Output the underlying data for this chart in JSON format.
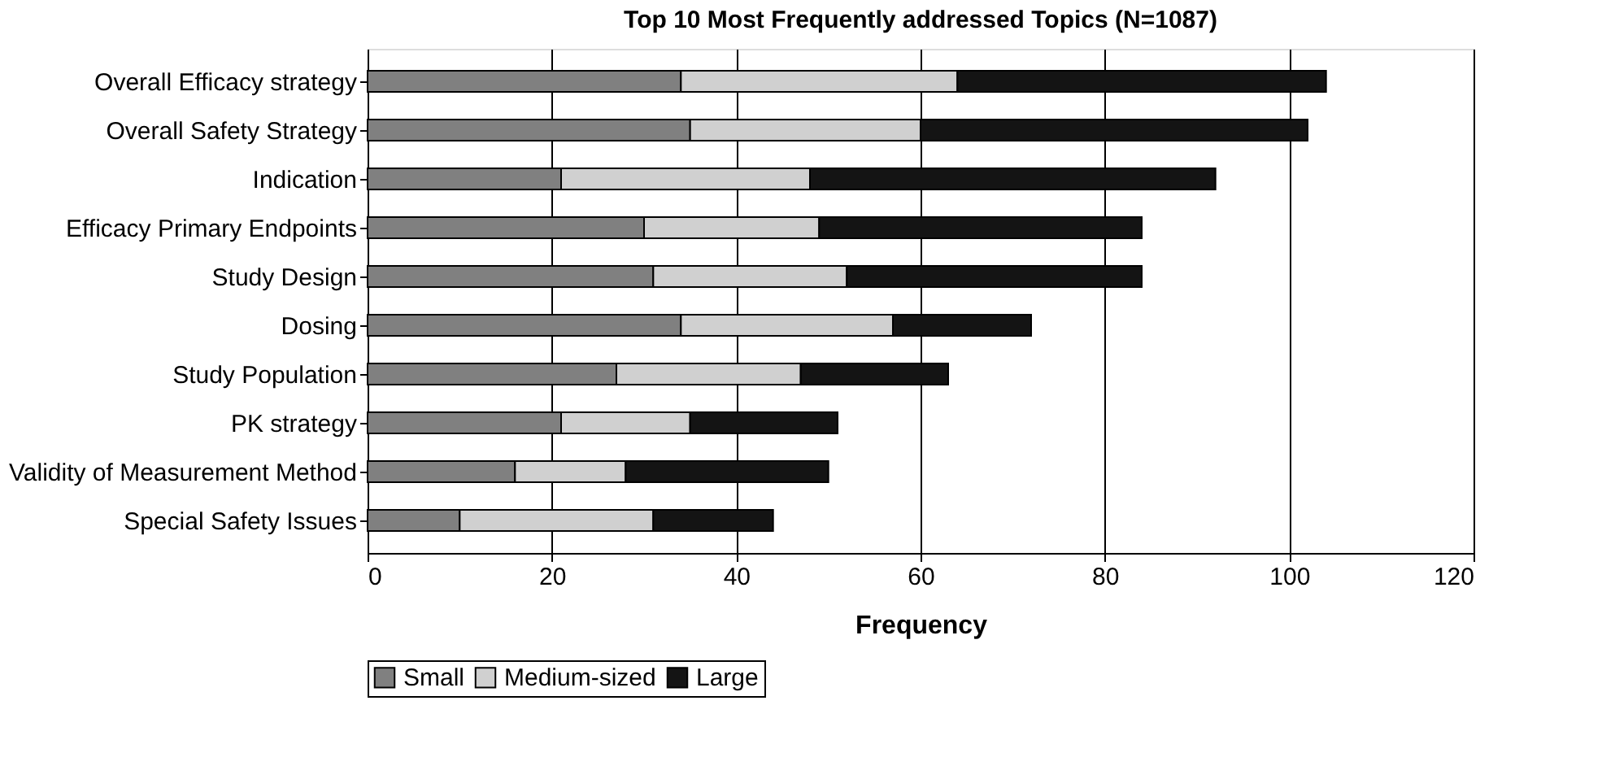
{
  "chart_data": {
    "type": "bar",
    "orientation": "horizontal",
    "stacked": true,
    "title": "Top 10 Most Frequently addressed Topics (N=1087)",
    "xlabel": "Frequency",
    "categories": [
      "Overall Efficacy strategy",
      "Overall Safety Strategy",
      "Indication",
      "Efficacy Primary Endpoints",
      "Study Design",
      "Dosing",
      "Study Population",
      "PK strategy",
      "Validity of Measurement Method",
      "Special Safety Issues"
    ],
    "series": [
      {
        "name": "Small",
        "color": "#808080",
        "values": [
          34,
          35,
          21,
          30,
          31,
          34,
          27,
          21,
          16,
          10
        ]
      },
      {
        "name": "Medium-sized",
        "color": "#d0d0d0",
        "values": [
          30,
          25,
          27,
          19,
          21,
          23,
          20,
          14,
          12,
          21
        ]
      },
      {
        "name": "Large",
        "color": "#141414",
        "values": [
          40,
          42,
          44,
          35,
          32,
          15,
          16,
          16,
          22,
          13
        ]
      }
    ],
    "xlim": [
      0,
      120
    ],
    "xticks": [
      0,
      20,
      40,
      60,
      80,
      100,
      120
    ],
    "grid": "x",
    "legend": "bottom"
  }
}
